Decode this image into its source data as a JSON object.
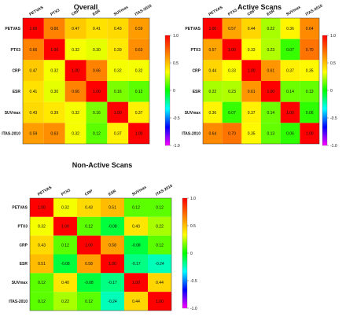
{
  "labels": [
    "PETVAS",
    "PTX3",
    "CRP",
    "ESR",
    "SUVmax",
    "ITAS-2010"
  ],
  "chart_data": [
    {
      "type": "heatmap",
      "title": "Overall",
      "labels": [
        "PETVAS",
        "PTX3",
        "CRP",
        "ESR",
        "SUVmax",
        "ITAS-2010"
      ],
      "matrix": [
        [
          1.0,
          0.66,
          0.47,
          0.41,
          0.43,
          0.59
        ],
        [
          0.66,
          1.0,
          0.32,
          0.3,
          0.39,
          0.63
        ],
        [
          0.47,
          0.32,
          1.0,
          0.66,
          0.32,
          0.32
        ],
        [
          0.41,
          0.3,
          0.66,
          1.0,
          0.16,
          0.12
        ],
        [
          0.43,
          0.39,
          0.32,
          0.16,
          1.0,
          0.37
        ],
        [
          0.59,
          0.63,
          0.32,
          0.12,
          0.37,
          1.0
        ]
      ],
      "colorbar_ticks": [
        "1.0",
        "0.5",
        "0",
        "-0.5",
        "-1.0"
      ],
      "vmin": -1.0,
      "vmax": 1.0
    },
    {
      "type": "heatmap",
      "title": "Active Scans",
      "labels": [
        "PETVAS",
        "PTX3",
        "CRP",
        "ESR",
        "SUVmax",
        "ITAS-2010"
      ],
      "matrix": [
        [
          1.0,
          0.57,
          0.44,
          0.22,
          0.36,
          0.64
        ],
        [
          0.57,
          1.0,
          0.33,
          0.23,
          0.07,
          0.7
        ],
        [
          0.44,
          0.33,
          1.0,
          0.61,
          0.37,
          0.35
        ],
        [
          0.22,
          0.23,
          0.61,
          1.0,
          0.14,
          0.13
        ],
        [
          0.36,
          0.07,
          0.37,
          0.14,
          1.0,
          0.06
        ],
        [
          0.64,
          0.7,
          0.35,
          0.13,
          0.06,
          1.0
        ]
      ],
      "colorbar_ticks": [
        "1.0",
        "0.5",
        "0",
        "-0.5",
        "-1.0"
      ],
      "vmin": -1.0,
      "vmax": 1.0
    },
    {
      "type": "heatmap",
      "title": "Non-Active Scans",
      "labels": [
        "PETVAS",
        "PTX3",
        "CRP",
        "ESR",
        "SUVmax",
        "ITAS-2010"
      ],
      "matrix": [
        [
          1.0,
          0.32,
          0.43,
          0.51,
          0.12,
          0.12
        ],
        [
          0.32,
          1.0,
          0.12,
          -0.08,
          0.4,
          0.22
        ],
        [
          0.43,
          0.12,
          1.0,
          0.58,
          -0.08,
          0.12
        ],
        [
          0.51,
          -0.08,
          0.58,
          1.0,
          -0.17,
          -0.24
        ],
        [
          0.12,
          0.4,
          -0.08,
          -0.17,
          1.0,
          0.44
        ],
        [
          0.12,
          0.22,
          0.12,
          -0.24,
          0.44,
          1.0
        ]
      ],
      "colorbar_ticks": [
        "1.0",
        "0.5",
        "0",
        "-0.5",
        "-1.0"
      ],
      "vmin": -1.0,
      "vmax": 1.0
    }
  ]
}
